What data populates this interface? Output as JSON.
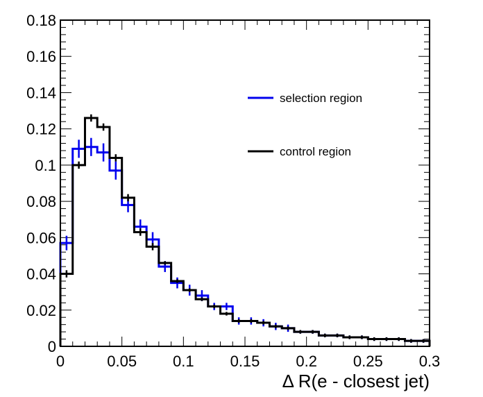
{
  "chart_data": {
    "type": "line",
    "title": "",
    "xlabel": "Δ R(e - closest jet)",
    "ylabel": "",
    "xlim": [
      0,
      0.3
    ],
    "ylim": [
      0,
      0.18
    ],
    "grid": false,
    "legend_position": "top-right",
    "x_ticks": [
      "0",
      "0.05",
      "0.1",
      "0.15",
      "0.2",
      "0.25",
      "0.3"
    ],
    "y_ticks": [
      "0",
      "0.02",
      "0.04",
      "0.06",
      "0.08",
      "0.1",
      "0.12",
      "0.14",
      "0.16",
      "0.18"
    ],
    "bin_edges": [
      0,
      0.01,
      0.02,
      0.03,
      0.04,
      0.05,
      0.06,
      0.07,
      0.08,
      0.09,
      0.1,
      0.11,
      0.12,
      0.13,
      0.14,
      0.15,
      0.16,
      0.17,
      0.18,
      0.19,
      0.2,
      0.21,
      0.22,
      0.23,
      0.24,
      0.25,
      0.26,
      0.27,
      0.28,
      0.29,
      0.3
    ],
    "series": [
      {
        "name": "selection region",
        "color": "#0000ee",
        "values": [
          0.057,
          0.109,
          0.11,
          0.107,
          0.097,
          0.078,
          0.066,
          0.059,
          0.044,
          0.035,
          0.031,
          0.028,
          0.022,
          0.022,
          0.014,
          0.014,
          0.013,
          0.011,
          0.01,
          0.008,
          0.008,
          0.006,
          0.006,
          0.005,
          0.005,
          0.004,
          0.004,
          0.004,
          0.003,
          0.003
        ],
        "errors": [
          0.004,
          0.005,
          0.005,
          0.005,
          0.005,
          0.004,
          0.004,
          0.004,
          0.003,
          0.003,
          0.003,
          0.003,
          0.002,
          0.002,
          0.002,
          0.002,
          0.002,
          0.002,
          0.002,
          0.001,
          0.001,
          0.001,
          0.001,
          0.001,
          0.001,
          0.001,
          0.001,
          0.001,
          0.001,
          0.001
        ]
      },
      {
        "name": "control region",
        "color": "#000000",
        "values": [
          0.04,
          0.1,
          0.126,
          0.121,
          0.104,
          0.082,
          0.063,
          0.055,
          0.046,
          0.036,
          0.031,
          0.026,
          0.022,
          0.018,
          0.014,
          0.014,
          0.013,
          0.011,
          0.01,
          0.008,
          0.008,
          0.006,
          0.006,
          0.005,
          0.005,
          0.004,
          0.004,
          0.004,
          0.003,
          0.003
        ],
        "errors": [
          0.002,
          0.002,
          0.002,
          0.002,
          0.002,
          0.002,
          0.002,
          0.002,
          0.001,
          0.001,
          0.001,
          0.001,
          0.001,
          0.001,
          0.001,
          0.001,
          0.001,
          0.001,
          0.001,
          0.001,
          0.001,
          0.001,
          0.001,
          0.001,
          0.001,
          0.001,
          0.001,
          0.001,
          0.001,
          0.001
        ]
      }
    ]
  }
}
